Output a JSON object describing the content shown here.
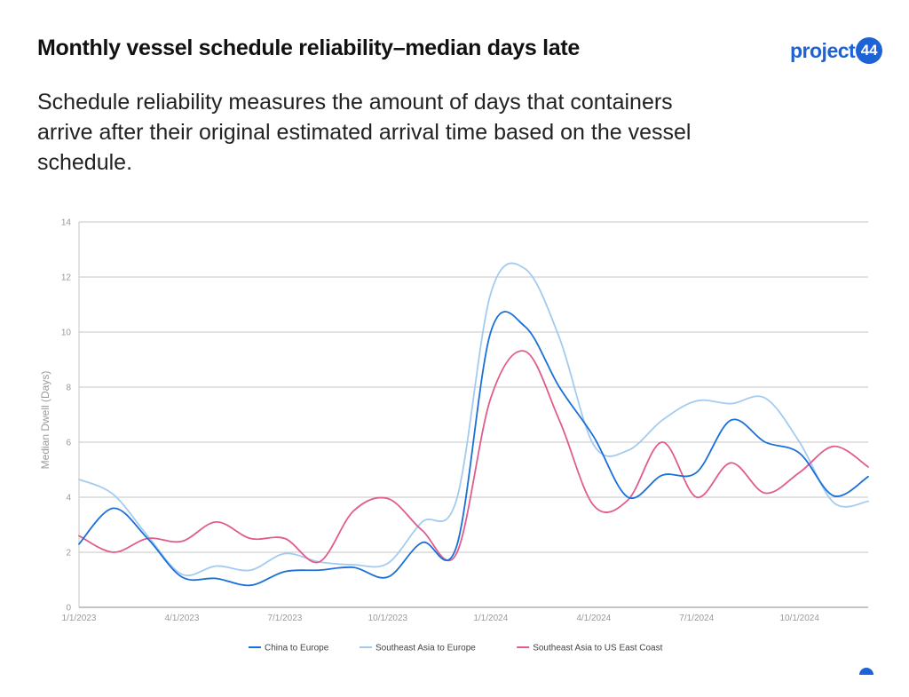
{
  "header": {
    "title": "Monthly vessel schedule reliability–median days late",
    "subtitle": "Schedule reliability measures the amount of days that containers arrive after their original estimated arrival time based on the vessel schedule."
  },
  "logo": {
    "text": "project",
    "badge": "44",
    "color": "#1e63d6"
  },
  "chart_data": {
    "type": "line",
    "title": "",
    "xlabel": "",
    "ylabel": "Median Dwell (Days)",
    "ylim": [
      0,
      14
    ],
    "yticks": [
      0,
      2,
      4,
      6,
      8,
      10,
      12,
      14
    ],
    "x_start": "1/1/2023",
    "x_end": "12/1/2024",
    "x_ticks": [
      "1/1/2023",
      "4/1/2023",
      "7/1/2023",
      "10/1/2023",
      "1/1/2024",
      "4/1/2024",
      "7/1/2024",
      "10/1/2024"
    ],
    "grid": true,
    "legend_position": "bottom",
    "categories": [
      "Jan 2023",
      "Feb 2023",
      "Mar 2023",
      "Apr 2023",
      "May 2023",
      "Jun 2023",
      "Jul 2023",
      "Aug 2023",
      "Sep 2023",
      "Oct 2023",
      "Nov 2023",
      "Dec 2023",
      "Jan 2024",
      "Feb 2024",
      "Mar 2024",
      "Apr 2024",
      "May 2024",
      "Jun 2024",
      "Jul 2024",
      "Aug 2024",
      "Sep 2024",
      "Oct 2024",
      "Nov 2024",
      "Dec 2024"
    ],
    "series": [
      {
        "name": "China to Europe",
        "color": "#1a6fd8",
        "values": [
          2.3,
          3.6,
          2.5,
          1.1,
          1.05,
          0.8,
          1.3,
          1.35,
          1.45,
          1.1,
          2.35,
          2.2,
          10.0,
          10.2,
          8.0,
          6.2,
          4.0,
          4.8,
          4.9,
          6.8,
          6.0,
          5.6,
          4.05,
          4.75
        ]
      },
      {
        "name": "Southeast Asia to Europe",
        "color": "#a4cbef",
        "values": [
          4.65,
          4.1,
          2.6,
          1.2,
          1.5,
          1.35,
          1.95,
          1.65,
          1.55,
          1.6,
          3.1,
          3.9,
          11.4,
          12.3,
          9.8,
          5.9,
          5.7,
          6.8,
          7.5,
          7.4,
          7.6,
          6.0,
          3.8,
          3.85
        ]
      },
      {
        "name": "Southeast Asia to US East Coast",
        "color": "#e05c8e",
        "values": [
          2.6,
          2.0,
          2.5,
          2.4,
          3.1,
          2.5,
          2.5,
          1.65,
          3.5,
          3.95,
          2.8,
          1.95,
          7.6,
          9.3,
          6.8,
          3.7,
          3.9,
          6.0,
          4.0,
          5.25,
          4.15,
          4.9,
          5.85,
          5.1
        ]
      }
    ]
  }
}
